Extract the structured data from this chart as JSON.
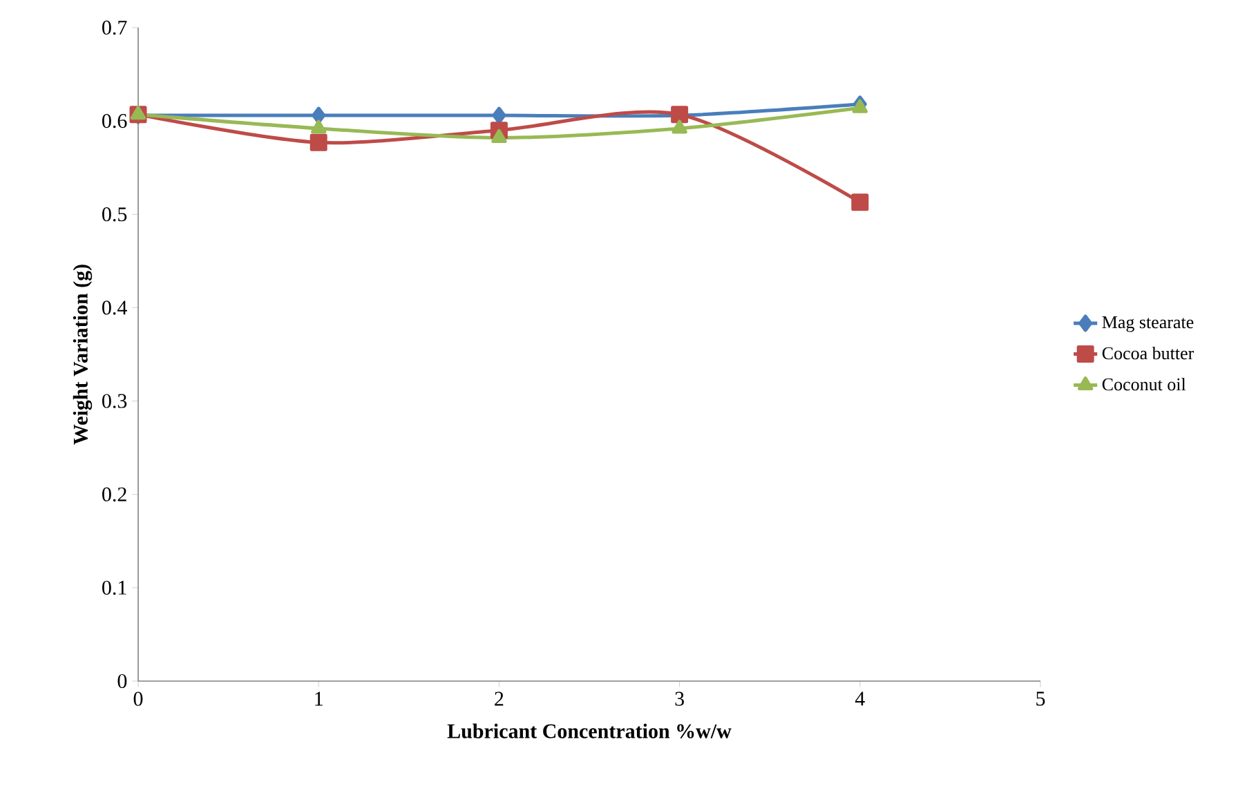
{
  "chart_data": {
    "type": "line",
    "xlabel": "Lubricant Concentration %w/w",
    "ylabel": "Weight Variation (g)",
    "x": [
      0,
      1,
      2,
      3,
      4
    ],
    "xlim": [
      0,
      5
    ],
    "xticks": [
      0,
      1,
      2,
      3,
      4,
      5
    ],
    "ylim": [
      0,
      0.7
    ],
    "yticks": [
      0,
      0.1,
      0.2,
      0.3,
      0.4,
      0.5,
      0.6,
      0.7
    ],
    "grid": false,
    "legend": "right",
    "line_style": "solid",
    "series": [
      {
        "name": "Mag stearate",
        "color": "#4a7ebb",
        "marker": "diamond",
        "values": [
          0.606,
          0.606,
          0.606,
          0.606,
          0.618
        ]
      },
      {
        "name": "Cocoa butter",
        "color": "#be4b48",
        "marker": "square",
        "values": [
          0.607,
          0.577,
          0.59,
          0.607,
          0.513
        ]
      },
      {
        "name": "Coconut oil",
        "color": "#98b954",
        "marker": "triangle",
        "values": [
          0.607,
          0.592,
          0.582,
          0.592,
          0.614
        ]
      }
    ]
  }
}
